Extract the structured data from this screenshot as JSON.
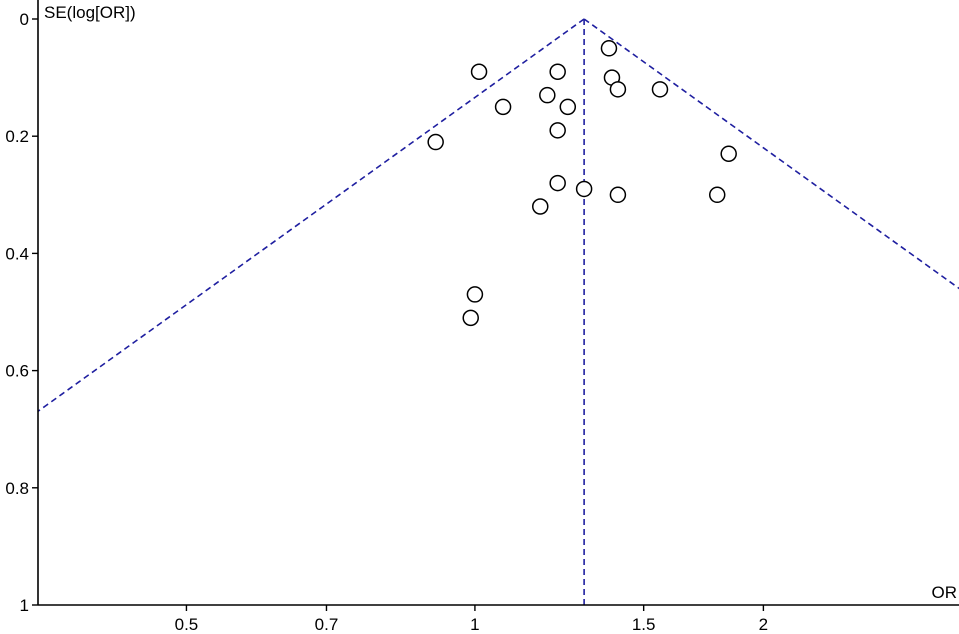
{
  "chart_data": {
    "type": "scatter",
    "title": "",
    "xlabel": "OR",
    "ylabel": "SE(log[OR])",
    "x_scale": "log",
    "y_reversed": true,
    "xlim": [
      0.35,
      3.2
    ],
    "ylim": [
      0,
      1
    ],
    "x_ticks": [
      {
        "value": 0.5,
        "label": "0.5"
      },
      {
        "value": 0.7,
        "label": "0.7"
      },
      {
        "value": 1,
        "label": "1"
      },
      {
        "value": 1.5,
        "label": "1.5"
      },
      {
        "value": 2,
        "label": "2"
      }
    ],
    "y_ticks": [
      {
        "value": 0,
        "label": "0"
      },
      {
        "value": 0.2,
        "label": "0.2"
      },
      {
        "value": 0.4,
        "label": "0.4"
      },
      {
        "value": 0.6,
        "label": "0.6"
      },
      {
        "value": 0.8,
        "label": "0.8"
      },
      {
        "value": 1,
        "label": "1"
      }
    ],
    "pooled_or": 1.3,
    "funnel_z": 1.96,
    "line_color": "#1f1fa0",
    "marker": "open-circle",
    "points": [
      {
        "x": 1.38,
        "y": 0.05
      },
      {
        "x": 1.01,
        "y": 0.09
      },
      {
        "x": 1.22,
        "y": 0.09
      },
      {
        "x": 1.39,
        "y": 0.1
      },
      {
        "x": 1.41,
        "y": 0.12
      },
      {
        "x": 1.56,
        "y": 0.12
      },
      {
        "x": 1.19,
        "y": 0.13
      },
      {
        "x": 1.07,
        "y": 0.15
      },
      {
        "x": 1.25,
        "y": 0.15
      },
      {
        "x": 1.22,
        "y": 0.19
      },
      {
        "x": 0.91,
        "y": 0.21
      },
      {
        "x": 1.84,
        "y": 0.23
      },
      {
        "x": 1.22,
        "y": 0.28
      },
      {
        "x": 1.3,
        "y": 0.29
      },
      {
        "x": 1.41,
        "y": 0.3
      },
      {
        "x": 1.79,
        "y": 0.3
      },
      {
        "x": 1.17,
        "y": 0.32
      },
      {
        "x": 1.0,
        "y": 0.47
      },
      {
        "x": 0.99,
        "y": 0.51
      }
    ]
  }
}
